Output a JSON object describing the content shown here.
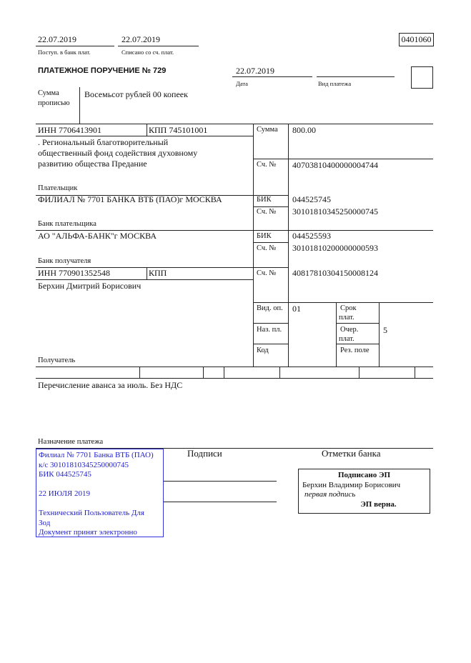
{
  "header": {
    "received_date": "22.07.2019",
    "received_label": "Поступ. в банк плат.",
    "debited_date": "22.07.2019",
    "debited_label": "Списано со сч. плат.",
    "form_code": "0401060"
  },
  "order": {
    "title": "ПЛАТЕЖНОЕ ПОРУЧЕНИЕ № 729",
    "date": "22.07.2019",
    "date_label": "Дата",
    "payment_type": "",
    "payment_type_label": "Вид платежа"
  },
  "amount_words": {
    "label_line1": "Сумма",
    "label_line2": "прописью",
    "value": "Восемьсот рублей 00 копеек"
  },
  "payer": {
    "inn": "ИНН 7706413901",
    "kpp": "КПП 745101001",
    "name_lines": [
      ". Региональный благотворительный",
      "общественный фонд содействия духовному",
      "развитию общества Предание"
    ],
    "label": "Плательщик",
    "amount_label": "Сумма",
    "amount": "800.00",
    "account_label": "Сч. №",
    "account": "40703810400000004744"
  },
  "payer_bank": {
    "name": "ФИЛИАЛ № 7701 БАНКА ВТБ (ПАО)г МОСКВА",
    "label": "Банк плательщика",
    "bik_label": "БИК",
    "bik": "044525745",
    "account_label": "Сч. №",
    "account": "30101810345250000745"
  },
  "payee_bank": {
    "name": "АО \"АЛЬФА-БАНК\"г МОСКВА",
    "label": "Банк получателя",
    "bik_label": "БИК",
    "bik": "044525593",
    "account_label": "Сч. №",
    "account": "30101810200000000593"
  },
  "payee": {
    "inn": "ИНН 770901352548",
    "kpp": "КПП",
    "name": "Берхин Дмитрий Борисович",
    "label": "Получатель",
    "account_label": "Сч. №",
    "account": "40817810304150008124"
  },
  "codes": {
    "op_type_label": "Вид. оп.",
    "op_type": "01",
    "purpose_code_label": "Наз. пл.",
    "code_label": "Код",
    "term_label_1": "Срок",
    "term_label_2": "плат.",
    "priority_label_1": "Очер.",
    "priority_label_2": "плат.",
    "priority": "5",
    "reserve_label": "Рез. поле"
  },
  "purpose": {
    "text": "Перечисление аванса за июль. Без НДС",
    "label": "Назначение платежа"
  },
  "signatures": {
    "label": "Подписи",
    "bank_marks_label": "Отметки банка"
  },
  "bank_stamp": {
    "lines": [
      "Филиал № 7701 Банка ВТБ (ПАО)",
      "к/с 30101810345250000745",
      "БИК 044525745",
      "",
      "22 ИЮЛЯ 2019",
      "",
      "Технический Пользователь Для",
      "Зод",
      "Документ принят электронно"
    ],
    "color": "#2222cc"
  },
  "e_signature": {
    "title": "Подписано ЭП",
    "signer": "Берхин Владимир Борисович",
    "role": "первая подпись",
    "status": "ЭП верна."
  }
}
